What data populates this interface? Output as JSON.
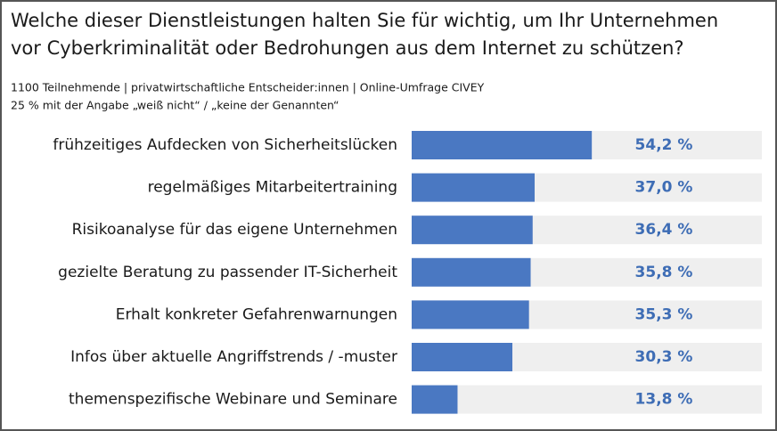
{
  "chart_data": {
    "type": "barh",
    "title": [
      "Welche dieser Dienstleistungen halten Sie für wichtig, um Ihr Unternehmen",
      "vor Cyberkriminalität oder Bedrohungen aus dem Internet zu schützen?"
    ],
    "subtitle": [
      "1100 Teilnehmende | privatwirtschaftliche Entscheider:innen | Online-Umfrage CIVEY",
      "25 % mit der Angabe „weiß nicht“ /  „keine der Genannten“"
    ],
    "categories": [
      "frühzeitiges Aufdecken von Sicherheitslücken",
      "regelmäßiges Mitarbeitertraining",
      "Risikoanalyse für das eigene Unternehmen",
      "gezielte Beratung zu passender IT-Sicherheit",
      "Erhalt konkreter Gefahrenwarnungen",
      "Infos über aktuelle Angriffstrends / -muster",
      "themenspezifische Webinare und Seminare"
    ],
    "values": [
      54.2,
      37.0,
      36.4,
      35.8,
      35.3,
      30.3,
      13.8
    ],
    "value_labels": [
      "54,2 %",
      "37,0 %",
      "36,4 %",
      "35,8 %",
      "35,3 %",
      "30,3 %",
      "13,8 %"
    ],
    "color": "#4a78c2",
    "xlim": [
      0,
      100
    ]
  }
}
